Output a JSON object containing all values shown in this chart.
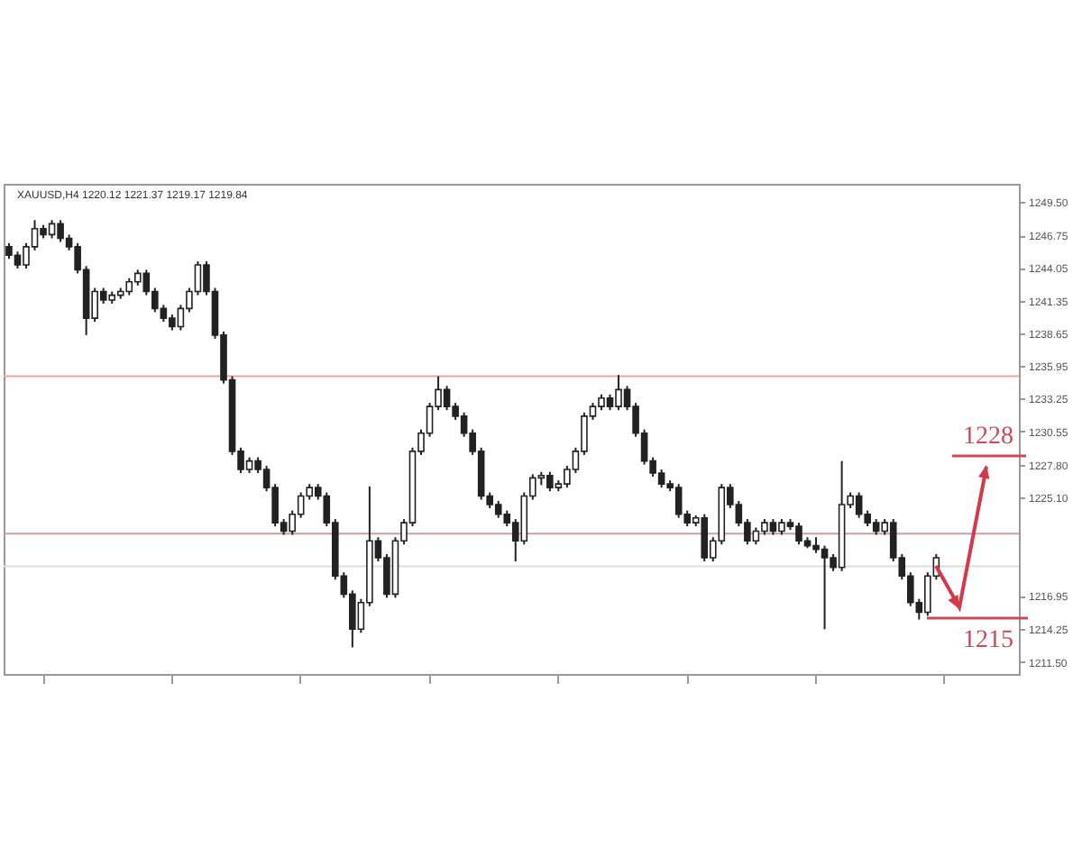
{
  "chart_data": {
    "type": "candlestick",
    "title": "XAUUSD,H4  1220.12 1221.37 1219.17 1219.84",
    "color": "#222222",
    "categories": [
      null,
      null,
      null,
      null,
      null,
      null,
      null,
      null,
      null,
      null,
      null,
      null,
      null,
      null,
      null,
      null,
      null,
      null,
      null,
      null,
      null,
      null,
      null,
      null,
      null,
      null,
      null,
      null,
      null,
      null,
      null,
      null,
      null,
      null,
      null,
      null,
      null,
      null,
      null,
      null,
      null,
      null,
      null,
      null,
      null,
      null,
      null,
      null,
      null,
      null,
      null,
      null,
      null,
      null,
      null,
      null,
      null,
      null,
      null,
      null,
      null,
      null,
      null,
      null,
      null,
      null,
      null,
      null,
      null,
      null,
      null,
      null,
      null,
      null,
      null,
      null,
      null,
      null,
      null,
      null,
      null,
      null,
      null,
      null,
      null,
      null,
      null,
      null,
      null,
      null,
      null,
      null,
      null,
      null,
      null,
      null,
      null,
      null,
      null,
      null,
      null,
      null,
      null,
      null,
      null,
      null,
      null,
      null,
      null,
      null,
      null,
      null,
      null,
      null,
      null,
      null,
      null,
      null
    ],
    "ohlc": [
      [
        1245.8,
        1246.1,
        1244.8,
        1245.1
      ],
      [
        1245.1,
        1245.4,
        1244.0,
        1244.3
      ],
      [
        1244.3,
        1246.1,
        1244.0,
        1245.8
      ],
      [
        1245.8,
        1248.0,
        1245.5,
        1247.3
      ],
      [
        1247.3,
        1247.6,
        1246.5,
        1246.8
      ],
      [
        1246.8,
        1248.0,
        1246.5,
        1247.7
      ],
      [
        1247.7,
        1248.0,
        1246.2,
        1246.5
      ],
      [
        1246.5,
        1246.8,
        1245.5,
        1245.8
      ],
      [
        1245.8,
        1246.1,
        1243.6,
        1243.9
      ],
      [
        1243.9,
        1244.2,
        1238.5,
        1239.9
      ],
      [
        1239.9,
        1242.4,
        1239.6,
        1242.1
      ],
      [
        1242.1,
        1242.4,
        1241.1,
        1241.4
      ],
      [
        1241.4,
        1242.1,
        1241.1,
        1241.8
      ],
      [
        1241.8,
        1242.4,
        1241.5,
        1242.1
      ],
      [
        1242.1,
        1243.2,
        1241.8,
        1242.9
      ],
      [
        1242.9,
        1243.9,
        1242.6,
        1243.6
      ],
      [
        1243.6,
        1243.9,
        1241.8,
        1242.1
      ],
      [
        1242.1,
        1242.4,
        1240.4,
        1240.7
      ],
      [
        1240.7,
        1241.0,
        1239.6,
        1239.9
      ],
      [
        1239.9,
        1240.2,
        1238.9,
        1239.2
      ],
      [
        1239.2,
        1241.0,
        1238.9,
        1240.7
      ],
      [
        1240.7,
        1242.4,
        1240.4,
        1242.1
      ],
      [
        1242.1,
        1244.6,
        1241.8,
        1244.3
      ],
      [
        1244.3,
        1244.6,
        1241.8,
        1242.1
      ],
      [
        1242.1,
        1242.4,
        1238.2,
        1238.5
      ],
      [
        1238.5,
        1238.8,
        1234.5,
        1234.8
      ],
      [
        1234.8,
        1235.1,
        1228.6,
        1228.9
      ],
      [
        1228.9,
        1229.2,
        1227.1,
        1227.4
      ],
      [
        1227.4,
        1228.4,
        1227.1,
        1228.1
      ],
      [
        1228.1,
        1228.4,
        1227.1,
        1227.4
      ],
      [
        1227.4,
        1227.7,
        1225.6,
        1225.9
      ],
      [
        1225.9,
        1226.2,
        1222.7,
        1223.0
      ],
      [
        1223.0,
        1223.3,
        1222.0,
        1222.3
      ],
      [
        1222.3,
        1224.0,
        1222.0,
        1223.7
      ],
      [
        1223.7,
        1225.5,
        1223.4,
        1225.2
      ],
      [
        1225.2,
        1226.2,
        1224.9,
        1225.9
      ],
      [
        1225.9,
        1226.2,
        1224.9,
        1225.2
      ],
      [
        1225.2,
        1225.5,
        1222.7,
        1223.0
      ],
      [
        1223.0,
        1223.3,
        1218.3,
        1218.6
      ],
      [
        1218.6,
        1218.9,
        1216.8,
        1217.1
      ],
      [
        1217.1,
        1217.4,
        1212.7,
        1214.2
      ],
      [
        1214.2,
        1216.7,
        1213.9,
        1216.4
      ],
      [
        1216.4,
        1226.0,
        1216.1,
        1221.5
      ],
      [
        1221.5,
        1221.8,
        1219.8,
        1220.1
      ],
      [
        1220.1,
        1220.4,
        1216.8,
        1217.1
      ],
      [
        1217.1,
        1221.8,
        1216.8,
        1221.5
      ],
      [
        1221.5,
        1223.3,
        1221.2,
        1223.0
      ],
      [
        1223.0,
        1229.2,
        1222.7,
        1228.9
      ],
      [
        1228.9,
        1230.7,
        1228.6,
        1230.4
      ],
      [
        1230.4,
        1232.9,
        1230.1,
        1232.6
      ],
      [
        1232.6,
        1235.1,
        1232.3,
        1234.0
      ],
      [
        1234.0,
        1234.3,
        1232.3,
        1232.6
      ],
      [
        1232.6,
        1232.9,
        1231.5,
        1231.8
      ],
      [
        1231.8,
        1232.1,
        1230.1,
        1230.4
      ],
      [
        1230.4,
        1230.7,
        1228.6,
        1228.9
      ],
      [
        1228.9,
        1229.2,
        1224.9,
        1225.2
      ],
      [
        1225.2,
        1225.5,
        1224.2,
        1224.5
      ],
      [
        1224.5,
        1224.8,
        1223.4,
        1223.7
      ],
      [
        1223.7,
        1224.0,
        1222.7,
        1223.0
      ],
      [
        1223.0,
        1223.3,
        1219.8,
        1221.5
      ],
      [
        1221.5,
        1225.5,
        1221.2,
        1225.2
      ],
      [
        1225.2,
        1227.0,
        1224.9,
        1226.7
      ],
      [
        1226.7,
        1227.2,
        1226.1,
        1226.9
      ],
      [
        1226.9,
        1227.2,
        1225.6,
        1225.9
      ],
      [
        1225.9,
        1226.5,
        1225.6,
        1226.2
      ],
      [
        1226.2,
        1227.7,
        1225.9,
        1227.4
      ],
      [
        1227.4,
        1229.2,
        1227.1,
        1228.9
      ],
      [
        1228.9,
        1232.1,
        1228.6,
        1231.8
      ],
      [
        1231.8,
        1232.9,
        1231.5,
        1232.6
      ],
      [
        1232.6,
        1233.6,
        1232.3,
        1233.3
      ],
      [
        1233.3,
        1233.6,
        1232.3,
        1232.6
      ],
      [
        1232.6,
        1235.2,
        1232.3,
        1234.0
      ],
      [
        1234.0,
        1234.3,
        1232.3,
        1232.6
      ],
      [
        1232.6,
        1232.9,
        1230.1,
        1230.4
      ],
      [
        1230.4,
        1230.7,
        1227.8,
        1228.1
      ],
      [
        1228.1,
        1228.4,
        1226.8,
        1227.1
      ],
      [
        1227.1,
        1227.4,
        1225.9,
        1226.2
      ],
      [
        1226.2,
        1226.5,
        1225.6,
        1225.9
      ],
      [
        1225.9,
        1226.2,
        1223.4,
        1223.7
      ],
      [
        1223.7,
        1224.0,
        1222.7,
        1223.0
      ],
      [
        1223.0,
        1223.6,
        1222.7,
        1223.4
      ],
      [
        1223.4,
        1223.7,
        1219.8,
        1220.1
      ],
      [
        1220.1,
        1221.8,
        1219.8,
        1221.5
      ],
      [
        1221.5,
        1226.2,
        1221.2,
        1225.9
      ],
      [
        1225.9,
        1226.2,
        1224.2,
        1224.5
      ],
      [
        1224.5,
        1224.8,
        1222.7,
        1223.0
      ],
      [
        1223.0,
        1223.3,
        1221.2,
        1221.5
      ],
      [
        1221.5,
        1222.6,
        1221.2,
        1222.3
      ],
      [
        1222.3,
        1223.3,
        1222.0,
        1223.0
      ],
      [
        1223.0,
        1223.3,
        1222.0,
        1222.3
      ],
      [
        1222.3,
        1223.3,
        1222.0,
        1223.0
      ],
      [
        1223.0,
        1223.3,
        1222.4,
        1222.7
      ],
      [
        1222.7,
        1223.0,
        1221.2,
        1221.5
      ],
      [
        1221.5,
        1221.8,
        1220.9,
        1221.1
      ],
      [
        1221.1,
        1221.8,
        1220.5,
        1220.8
      ],
      [
        1220.8,
        1221.1,
        1214.2,
        1220.1
      ],
      [
        1220.1,
        1220.4,
        1219.0,
        1219.3
      ],
      [
        1219.3,
        1228.1,
        1219.0,
        1224.5
      ],
      [
        1224.5,
        1225.5,
        1224.2,
        1225.2
      ],
      [
        1225.2,
        1225.5,
        1223.4,
        1223.7
      ],
      [
        1223.7,
        1224.0,
        1222.7,
        1223.0
      ],
      [
        1223.0,
        1223.3,
        1222.0,
        1222.3
      ],
      [
        1222.3,
        1223.3,
        1222.0,
        1223.0
      ],
      [
        1223.0,
        1223.3,
        1219.8,
        1220.1
      ],
      [
        1220.1,
        1220.4,
        1218.3,
        1218.6
      ],
      [
        1218.6,
        1218.9,
        1216.1,
        1216.4
      ],
      [
        1216.4,
        1216.7,
        1215.0,
        1215.6
      ],
      [
        1215.6,
        1218.9,
        1215.3,
        1218.6
      ],
      [
        1218.6,
        1220.4,
        1218.3,
        1220.1
      ],
      null,
      null,
      null,
      null,
      null,
      null,
      null,
      null,
      null
    ],
    "ylim": [
      1210.5,
      1251
    ],
    "yticks": [
      {
        "value": 1249.5,
        "label": "1249.50"
      },
      {
        "value": 1246.75,
        "label": "1246.75"
      },
      {
        "value": 1244.05,
        "label": "1244.05"
      },
      {
        "value": 1241.35,
        "label": "1241.35"
      },
      {
        "value": 1238.65,
        "label": "1238.65"
      },
      {
        "value": 1235.95,
        "label": "1235.95"
      },
      {
        "value": 1233.25,
        "label": "1233.25"
      },
      {
        "value": 1230.55,
        "label": "1230.55"
      },
      {
        "value": 1227.8,
        "label": "1227.80"
      },
      {
        "value": 1225.1,
        "label": "1225.10"
      },
      {
        "value": 1216.95,
        "label": "1216.95"
      },
      {
        "value": 1214.25,
        "label": "1214.25"
      },
      {
        "value": 1211.5,
        "label": "1211.50"
      }
    ],
    "ref_lines": [
      {
        "axis": "y",
        "value": 1235.1,
        "color": "#eca4a4"
      },
      {
        "axis": "y",
        "value": 1222.1,
        "color": "#c9a0a0"
      },
      {
        "axis": "y",
        "value": 1219.4,
        "color": "#dddddd"
      }
    ],
    "annotations": [
      "1228",
      "1215"
    ],
    "grid": false
  }
}
